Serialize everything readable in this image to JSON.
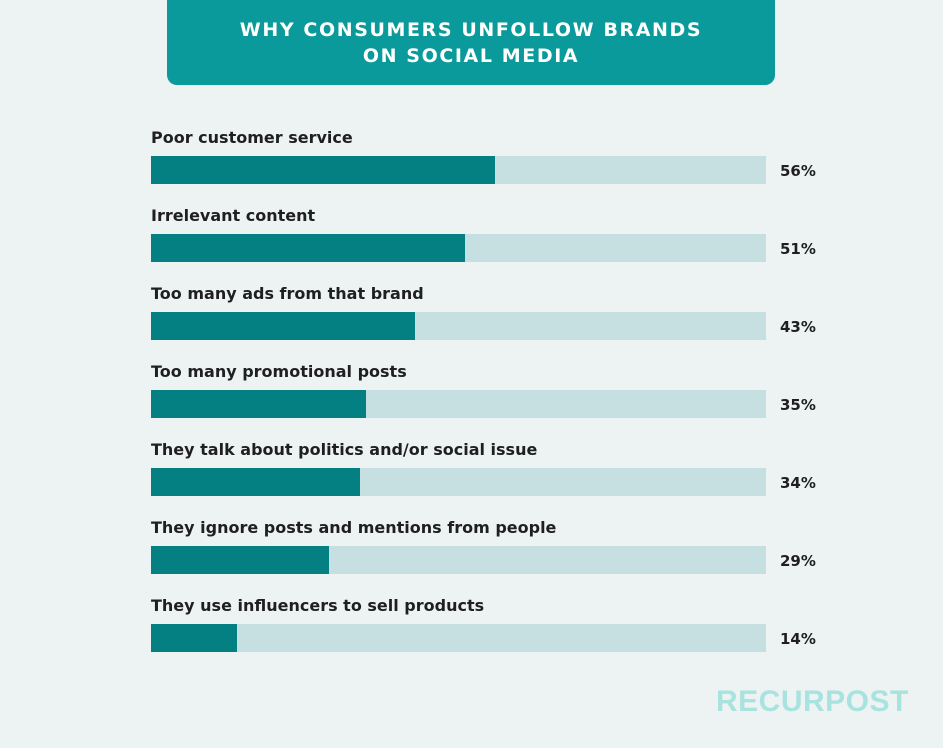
{
  "title": {
    "line1": "WHY CONSUMERS UNFOLLOW BRANDS",
    "line2": "ON SOCIAL MEDIA"
  },
  "chart_data": {
    "type": "bar",
    "orientation": "horizontal",
    "categories": [
      "Poor customer service",
      "Irrelevant content",
      "Too many ads from that brand",
      "Too many promotional posts",
      "They talk about politics and/or social issue",
      "They ignore posts and mentions from people",
      "They use influencers to sell products"
    ],
    "values": [
      56,
      51,
      43,
      35,
      34,
      29,
      14
    ],
    "value_labels": [
      "56%",
      "51%",
      "43%",
      "35%",
      "34%",
      "29%",
      "14%"
    ],
    "xlim": [
      0,
      100
    ],
    "grid": false,
    "colors": {
      "fill": "#048082",
      "track": "#c6e0e1"
    }
  },
  "logo": {
    "text": "RECURPOST",
    "color": "#a9e3df"
  }
}
